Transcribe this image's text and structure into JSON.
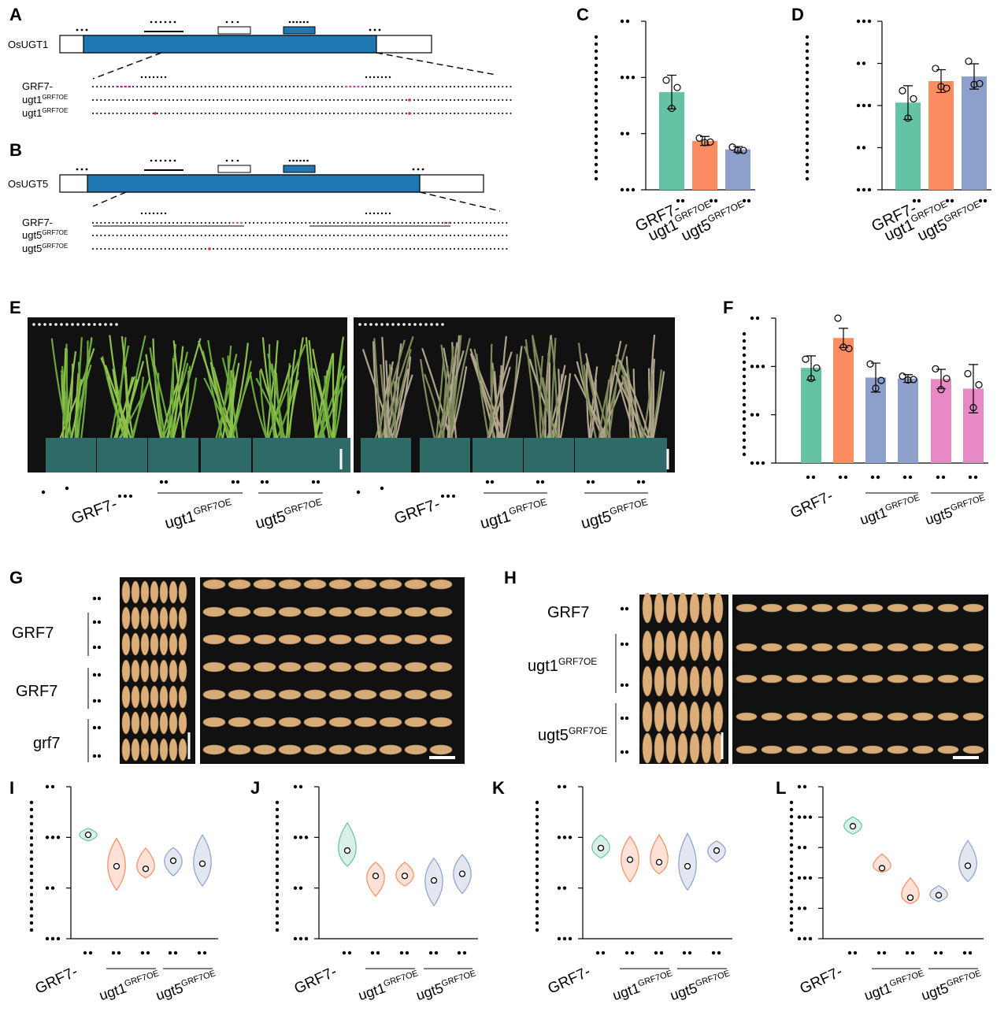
{
  "gene_panels": [
    {
      "label": "A",
      "gene": "OsUGT1",
      "rows": [
        {
          "name": "GRF7-"
        },
        {
          "name": "ugt1",
          "sup": "GRF7OE"
        },
        {
          "name": "ugt1",
          "sup": "GRF7OE"
        }
      ]
    },
    {
      "label": "B",
      "gene": "OsUGT5",
      "rows": [
        {
          "name": "GRF7-"
        },
        {
          "name": "ugt5",
          "sup": "GRF7OE"
        },
        {
          "name": "ugt5",
          "sup": "GRF7OE"
        }
      ]
    }
  ],
  "plant_photo": {
    "label": "E",
    "panels": [
      {
        "first": "GRF7-",
        "groups": [
          {
            "name": "ugt1",
            "sup": "GRF7OE"
          },
          {
            "name": "ugt5",
            "sup": "GRF7OE"
          }
        ]
      },
      {
        "first": "GRF7-",
        "groups": [
          {
            "name": "ugt1",
            "sup": "GRF7OE"
          },
          {
            "name": "ugt5",
            "sup": "GRF7OE"
          }
        ]
      }
    ]
  },
  "grain_photos": [
    {
      "label": "G",
      "rows": [
        {
          "name": "GRF7"
        },
        {
          "name": "GRF7"
        },
        {
          "name": "grf7"
        }
      ]
    },
    {
      "label": "H",
      "rows": [
        {
          "name": "GRF7"
        },
        {
          "name": "ugt1",
          "sup": "GRF7OE"
        },
        {
          "name": "ugt5",
          "sup": "GRF7OE"
        }
      ]
    }
  ],
  "chart_data": [
    {
      "type": "bar",
      "label": "C",
      "categories": [
        "GRF7-",
        "ugt1",
        "ugt5"
      ],
      "category_sups": [
        null,
        "GRF7OE",
        "GRF7OE"
      ],
      "values": [
        1.74,
        0.87,
        0.72
      ],
      "errors": [
        0.3,
        0.08,
        0.05
      ],
      "points": [
        [
          1.95,
          1.45,
          1.82
        ],
        [
          0.92,
          0.84,
          0.85
        ],
        [
          0.76,
          0.7,
          0.7
        ]
      ],
      "colors": [
        "#66c2a5",
        "#fc8d62",
        "#8da0cb"
      ],
      "ylim": [
        0,
        3
      ],
      "yticks": [
        0,
        1,
        2,
        3
      ]
    },
    {
      "type": "bar",
      "label": "D",
      "categories": [
        "GRF7-",
        "ugt1",
        "ugt5"
      ],
      "category_sups": [
        null,
        "GRF7OE",
        "GRF7OE"
      ],
      "values": [
        2.07,
        2.58,
        2.69
      ],
      "errors": [
        0.4,
        0.27,
        0.3
      ],
      "points": [
        [
          2.35,
          1.7,
          2.16
        ],
        [
          2.88,
          2.45,
          2.41
        ],
        [
          3.05,
          2.5,
          2.52
        ]
      ],
      "colors": [
        "#66c2a5",
        "#fc8d62",
        "#8da0cb"
      ],
      "ylim": [
        0,
        4
      ],
      "yticks": [
        0,
        1,
        2,
        3,
        4
      ]
    },
    {
      "type": "bar",
      "label": "F",
      "categories": [
        null,
        "GRF7-",
        null,
        null,
        null,
        null
      ],
      "groups": [
        {
          "name": "ugt1",
          "sup": "GRF7OE",
          "bars": [
            2,
            3
          ]
        },
        {
          "name": "ugt5",
          "sup": "GRF7OE",
          "bars": [
            4,
            5
          ]
        }
      ],
      "values": [
        1.97,
        2.59,
        1.77,
        1.75,
        1.74,
        1.54
      ],
      "errors": [
        0.25,
        0.2,
        0.3,
        0.08,
        0.2,
        0.5
      ],
      "points": [
        [
          2.15,
          1.75,
          1.97
        ],
        [
          3.0,
          2.4,
          2.37
        ],
        [
          2.05,
          1.55,
          1.71
        ],
        [
          1.8,
          1.72,
          1.73
        ],
        [
          1.95,
          1.52,
          1.75
        ],
        [
          1.85,
          1.15,
          1.62
        ]
      ],
      "colors": [
        "#66c2a5",
        "#fc8d62",
        "#8da0cb",
        "#8da0cb",
        "#e78ac3",
        "#e78ac3"
      ],
      "ylim": [
        0,
        3
      ],
      "yticks": [
        0,
        1,
        2,
        3
      ]
    },
    {
      "type": "violin",
      "label": "I",
      "categories": [
        "GRF7-",
        null,
        null,
        null,
        null
      ],
      "groups": [
        {
          "name": "ugt1",
          "sup": "GRF7OE",
          "bars": [
            1,
            2
          ]
        },
        {
          "name": "ugt5",
          "sup": "GRF7OE",
          "bars": [
            3,
            4
          ]
        }
      ],
      "values": [
        2.05,
        1.43,
        1.38,
        1.54,
        1.48
      ],
      "mins": [
        1.93,
        0.96,
        1.2,
        1.24,
        1.04
      ],
      "maxs": [
        2.18,
        1.98,
        1.79,
        1.8,
        2.05
      ],
      "colors": [
        "#66c2a5",
        "#fc8d62",
        "#fc8d62",
        "#8da0cb",
        "#8da0cb"
      ],
      "ylim": [
        0,
        3
      ],
      "yticks": [
        0,
        1,
        2,
        3
      ]
    },
    {
      "type": "violin",
      "label": "J",
      "categories": [
        "GRF7-",
        null,
        null,
        null,
        null
      ],
      "groups": [
        {
          "name": "ugt1",
          "sup": "GRF7OE",
          "bars": [
            1,
            2
          ]
        },
        {
          "name": "ugt5",
          "sup": "GRF7OE",
          "bars": [
            3,
            4
          ]
        }
      ],
      "values": [
        1.74,
        1.24,
        1.24,
        1.15,
        1.28
      ],
      "mins": [
        1.43,
        0.84,
        1.04,
        0.65,
        0.89
      ],
      "maxs": [
        2.29,
        1.51,
        1.51,
        1.59,
        1.66
      ],
      "colors": [
        "#66c2a5",
        "#fc8d62",
        "#fc8d62",
        "#8da0cb",
        "#8da0cb"
      ],
      "ylim": [
        0,
        3
      ],
      "yticks": [
        0,
        1,
        2,
        3
      ]
    },
    {
      "type": "violin",
      "label": "K",
      "categories": [
        "GRF7-",
        null,
        null,
        null,
        null
      ],
      "groups": [
        {
          "name": "ugt1",
          "sup": "GRF7OE",
          "bars": [
            1,
            2
          ]
        },
        {
          "name": "ugt5",
          "sup": "GRF7OE",
          "bars": [
            3,
            4
          ]
        }
      ],
      "values": [
        1.79,
        1.56,
        1.51,
        1.43,
        1.74
      ],
      "mins": [
        1.59,
        1.12,
        1.28,
        0.96,
        1.51
      ],
      "maxs": [
        2.05,
        2.02,
        2.05,
        2.08,
        1.93
      ],
      "colors": [
        "#66c2a5",
        "#fc8d62",
        "#fc8d62",
        "#8da0cb",
        "#8da0cb"
      ],
      "ylim": [
        0,
        3
      ],
      "yticks": [
        0,
        1,
        2,
        3
      ]
    },
    {
      "type": "violin",
      "label": "L",
      "categories": [
        "GRF7-",
        null,
        null,
        null,
        null
      ],
      "groups": [
        {
          "name": "ugt1",
          "sup": "GRF7OE",
          "bars": [
            1,
            2
          ]
        },
        {
          "name": "ugt5",
          "sup": "GRF7OE",
          "bars": [
            3,
            4
          ]
        }
      ],
      "values": [
        3.7,
        2.32,
        1.35,
        1.43,
        2.4
      ],
      "mins": [
        3.44,
        2.19,
        1.15,
        1.22,
        1.88
      ],
      "maxs": [
        4.01,
        2.79,
        2.0,
        1.74,
        3.23
      ],
      "colors": [
        "#66c2a5",
        "#fc8d62",
        "#fc8d62",
        "#8da0cb",
        "#8da0cb"
      ],
      "ylim": [
        0,
        5
      ],
      "yticks": [
        0,
        1,
        2,
        3,
        4,
        5
      ]
    }
  ]
}
